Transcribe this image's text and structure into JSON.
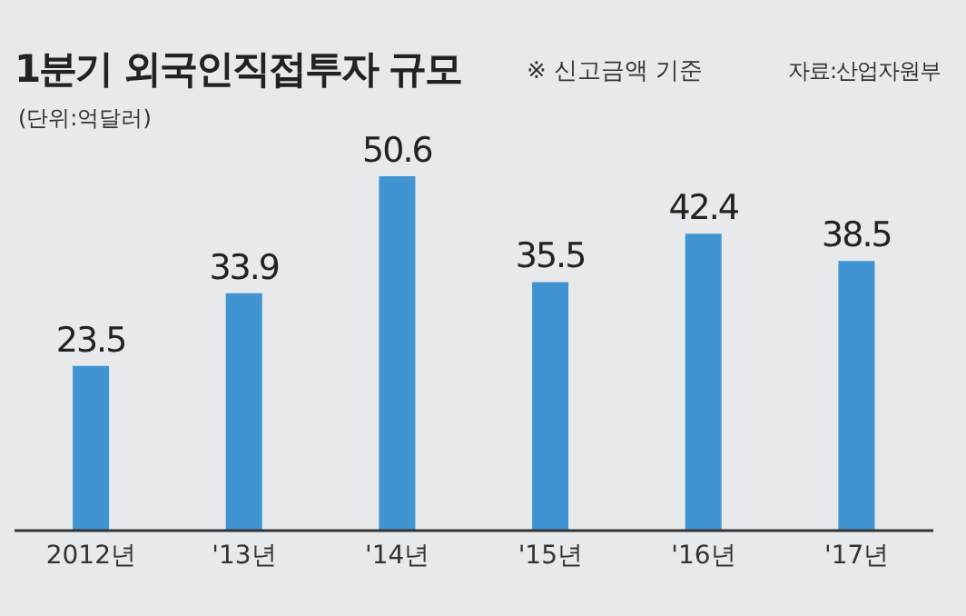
{
  "chart_data": {
    "type": "bar",
    "title": "1분기 외국인직접투자 규모",
    "subtitle": "※ 신고금액 기준",
    "ylabel": "(단위:억달러)",
    "annotations": [
      "자료:산업자원부"
    ],
    "categories": [
      "2012년",
      "'13년",
      "'14년",
      "'15년",
      "'16년",
      "'17년"
    ],
    "values": [
      23.5,
      33.9,
      50.6,
      35.5,
      42.4,
      38.5
    ],
    "color": "#4194d2",
    "data_labels": true,
    "grid": false,
    "legend": false
  }
}
